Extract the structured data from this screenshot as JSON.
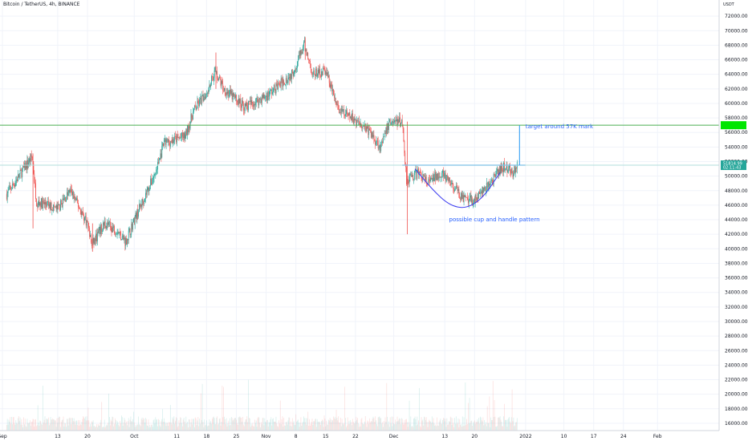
{
  "header": {
    "symbol_title": "Bitcoin / TetherUS, 4h, BINANCE"
  },
  "colors": {
    "up": "#26a69a",
    "down": "#ef5350",
    "target_line": "#4caf50",
    "neckline": "#7cc1e6",
    "annotation": "#2962ff",
    "cup_curve": "#3c3cf0",
    "grid": "#f0f3fa"
  },
  "chart_data": {
    "type": "candlestick",
    "title": "Bitcoin / TetherUS, 4h, BINANCE",
    "y_axis_unit": "USDT",
    "ylim": [
      15000,
      74000
    ],
    "y_ticks": [
      16000,
      18000,
      20000,
      22000,
      24000,
      26000,
      28000,
      30000,
      32000,
      34000,
      36000,
      38000,
      40000,
      42000,
      44000,
      46000,
      48000,
      50000,
      52000,
      54000,
      56000,
      58000,
      60000,
      62000,
      64000,
      66000,
      68000,
      70000,
      72000
    ],
    "y_tick_labels": [
      "16000.00",
      "18000.00",
      "20000.00",
      "22000.00",
      "24000.00",
      "26000.00",
      "28000.00",
      "30000.00",
      "32000.00",
      "34000.00",
      "36000.00",
      "38000.00",
      "40000.00",
      "42000.00",
      "44000.00",
      "46000.00",
      "48000.00",
      "50000.00",
      "52000.00",
      "54000.00",
      "56000.00",
      "58000.00",
      "60000.00",
      "62000.00",
      "64000.00",
      "66000.00",
      "68000.00",
      "70000.00",
      "72000.00"
    ],
    "x_tick_labels": [
      "Sep",
      "13",
      "20",
      "Oct",
      "11",
      "18",
      "25",
      "Nov",
      "8",
      "15",
      "22",
      "Dec",
      "13",
      "20",
      "2022",
      "10",
      "17",
      "24",
      "Feb"
    ],
    "grid": true,
    "price_path": [
      {
        "date": "2021-09-01",
        "price": 47500
      },
      {
        "date": "2021-09-07",
        "price": 52700
      },
      {
        "date": "2021-09-08",
        "price": 46500
      },
      {
        "date": "2021-09-13",
        "price": 45500
      },
      {
        "date": "2021-09-16",
        "price": 48000
      },
      {
        "date": "2021-09-20",
        "price": 43500
      },
      {
        "date": "2021-09-21",
        "price": 40500
      },
      {
        "date": "2021-09-24",
        "price": 43500
      },
      {
        "date": "2021-09-27",
        "price": 42500
      },
      {
        "date": "2021-09-29",
        "price": 41000
      },
      {
        "date": "2021-10-01",
        "price": 44000
      },
      {
        "date": "2021-10-06",
        "price": 50500
      },
      {
        "date": "2021-10-08",
        "price": 54500
      },
      {
        "date": "2021-10-13",
        "price": 55500
      },
      {
        "date": "2021-10-15",
        "price": 59000
      },
      {
        "date": "2021-10-18",
        "price": 61500
      },
      {
        "date": "2021-10-20",
        "price": 64500
      },
      {
        "date": "2021-10-22",
        "price": 62000
      },
      {
        "date": "2021-10-27",
        "price": 59500
      },
      {
        "date": "2021-11-01",
        "price": 61000
      },
      {
        "date": "2021-11-07",
        "price": 64000
      },
      {
        "date": "2021-11-10",
        "price": 68000
      },
      {
        "date": "2021-11-12",
        "price": 64000
      },
      {
        "date": "2021-11-15",
        "price": 64500
      },
      {
        "date": "2021-11-18",
        "price": 59000
      },
      {
        "date": "2021-11-21",
        "price": 58000
      },
      {
        "date": "2021-11-24",
        "price": 57000
      },
      {
        "date": "2021-11-28",
        "price": 54000
      },
      {
        "date": "2021-11-30",
        "price": 57500
      },
      {
        "date": "2021-12-03",
        "price": 57500
      },
      {
        "date": "2021-12-04",
        "price": 49500
      },
      {
        "date": "2021-12-07",
        "price": 50500
      },
      {
        "date": "2021-12-09",
        "price": 49000
      },
      {
        "date": "2021-12-12",
        "price": 50500
      },
      {
        "date": "2021-12-15",
        "price": 48500
      },
      {
        "date": "2021-12-18",
        "price": 46500
      },
      {
        "date": "2021-12-20",
        "price": 46800
      },
      {
        "date": "2021-12-23",
        "price": 48500
      },
      {
        "date": "2021-12-26",
        "price": 50800
      },
      {
        "date": "2021-12-27",
        "price": 51300
      },
      {
        "date": "2021-12-29",
        "price": 50500
      },
      {
        "date": "2021-12-30",
        "price": 51400
      }
    ],
    "spikes": [
      {
        "date": "2021-09-07",
        "low": 42800,
        "high": 53000
      },
      {
        "date": "2021-09-21",
        "low": 39600,
        "high": 43500
      },
      {
        "date": "2021-12-04",
        "low": 42000,
        "high": 57500
      },
      {
        "date": "2021-11-10",
        "low": 66000,
        "high": 69000
      },
      {
        "date": "2021-10-20",
        "low": 62000,
        "high": 67000
      }
    ],
    "current_price_label": "51814.99",
    "current_time_label": "02:11:43",
    "target_level": 57000,
    "neckline_level": 51500,
    "neckline_start": "2021-12-03",
    "neckline_end": "2021-12-31",
    "target_arrow": {
      "date": "2021-12-30",
      "from": 51500,
      "to": 57000
    },
    "cup_curve": [
      {
        "date": "2021-12-06",
        "price": 51000
      },
      {
        "date": "2021-12-10",
        "price": 48200
      },
      {
        "date": "2021-12-14",
        "price": 46000
      },
      {
        "date": "2021-12-18",
        "price": 45500
      },
      {
        "date": "2021-12-22",
        "price": 47000
      },
      {
        "date": "2021-12-26",
        "price": 50500
      }
    ],
    "annotations": [
      {
        "text": "target around 57K mark",
        "date": "2022-01-01",
        "price": 56600
      },
      {
        "text": "possible cup and handle pattern",
        "date": "2021-12-14",
        "price": 43800
      }
    ]
  }
}
